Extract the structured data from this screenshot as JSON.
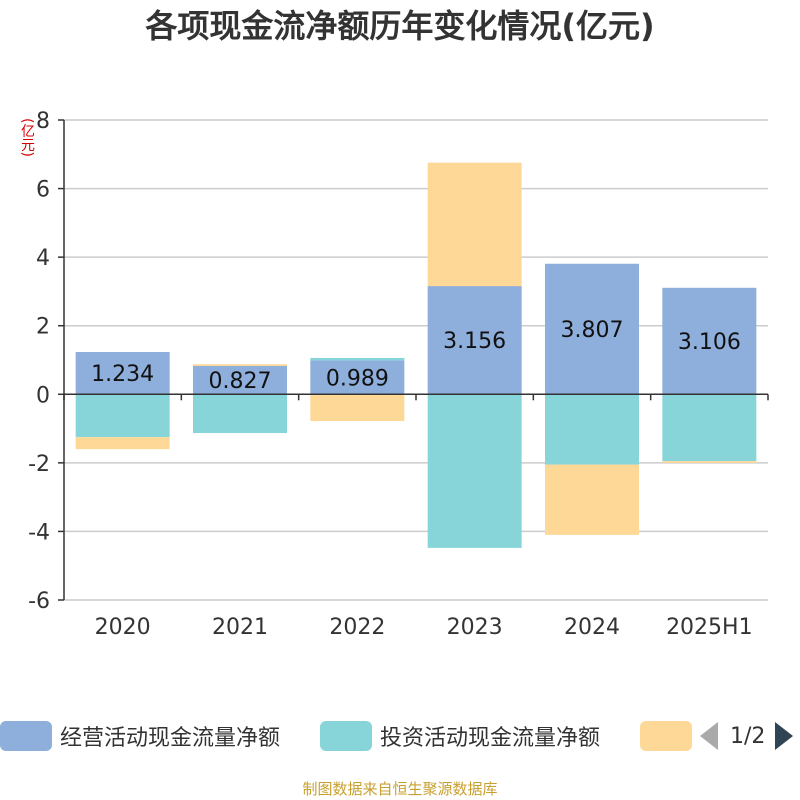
{
  "chart_data": {
    "type": "bar",
    "stacked": true,
    "title": "各项现金流净额历年变化情况(亿元)",
    "ylabel": "(亿元)",
    "categories": [
      "2020",
      "2021",
      "2022",
      "2023",
      "2024",
      "2025H1"
    ],
    "ylim": [
      -6,
      8
    ],
    "yticks": [
      8,
      6,
      4,
      2,
      0,
      -2,
      -4,
      -6
    ],
    "grid": true,
    "legend_position": "bottom",
    "series": [
      {
        "name": "经营活动现金流量净额",
        "color": "#8eaedb",
        "values": [
          1.234,
          0.827,
          0.989,
          3.156,
          3.807,
          3.106
        ],
        "data_labels": [
          "1.234",
          "0.827",
          "0.989",
          "3.156",
          "3.807",
          "3.106"
        ]
      },
      {
        "name": "投资活动现金流量净额",
        "color": "#87d5d8",
        "values": [
          -1.25,
          -1.13,
          0.07,
          -4.48,
          -2.05,
          -1.95
        ]
      },
      {
        "name": "",
        "color": "#fdd896",
        "values": [
          -0.35,
          0.05,
          -0.78,
          3.6,
          -2.05,
          -0.05
        ]
      }
    ]
  },
  "legend": {
    "items": [
      {
        "label": "经营活动现金流量净额",
        "color": "#8eaedb"
      },
      {
        "label": "投资活动现金流量净额",
        "color": "#87d5d8"
      },
      {
        "label": "",
        "color": "#fdd896"
      }
    ],
    "pager_text": "1/2"
  },
  "footer": {
    "source": "制图数据来自恒生聚源数据库"
  }
}
